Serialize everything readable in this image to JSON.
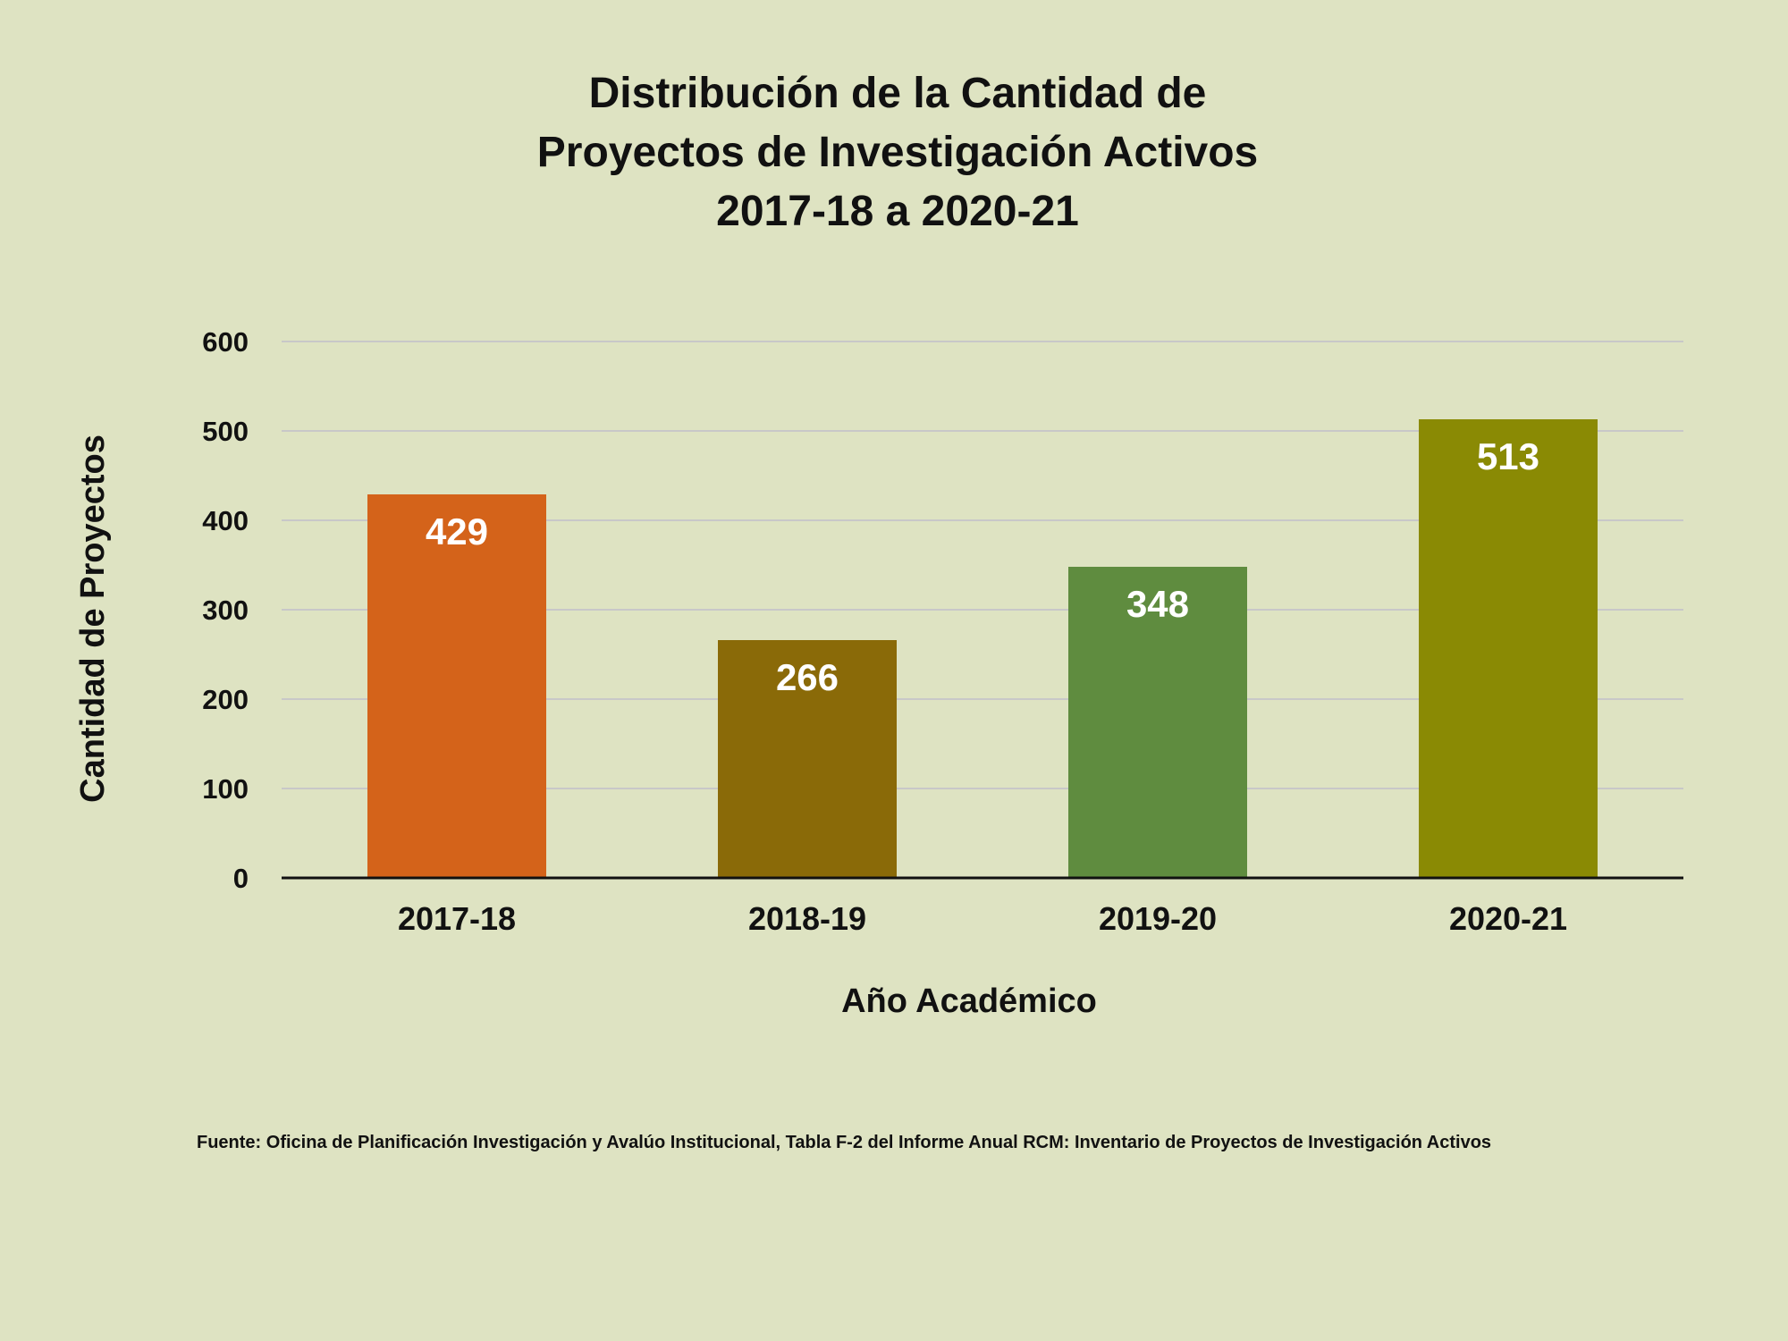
{
  "chart_data": {
    "type": "bar",
    "title_lines": [
      "Distribución de la Cantidad de",
      "Proyectos de Investigación Activos",
      "2017-18 a 2020-21"
    ],
    "categories": [
      "2017-18",
      "2018-19",
      "2019-20",
      "2020-21"
    ],
    "values": [
      429,
      266,
      348,
      513
    ],
    "data_labels": [
      "429",
      "266",
      "348",
      "513"
    ],
    "bar_colors": [
      "#d4631a",
      "#8a6a08",
      "#5f8c3f",
      "#8a8a04"
    ],
    "xlabel": "Año Académico",
    "ylabel": "Cantidad de Proyectos",
    "ylim": [
      0,
      600
    ],
    "yticks": [
      0,
      100,
      200,
      300,
      400,
      500,
      600
    ],
    "ytick_labels": [
      "0",
      "100",
      "200",
      "300",
      "400",
      "500",
      "600"
    ],
    "grid": true,
    "legend": "none"
  },
  "footer": {
    "source": "Fuente: Oficina de Planificación Investigación y Avalúo Institucional, Tabla F-2 del Informe Anual RCM: Inventario de Proyectos de Investigación Activos"
  },
  "colors": {
    "background": "#dee3c2",
    "gridline": "#c8c8c8",
    "axis": "#111111",
    "text": "#111111",
    "data_label": "#ffffff"
  }
}
